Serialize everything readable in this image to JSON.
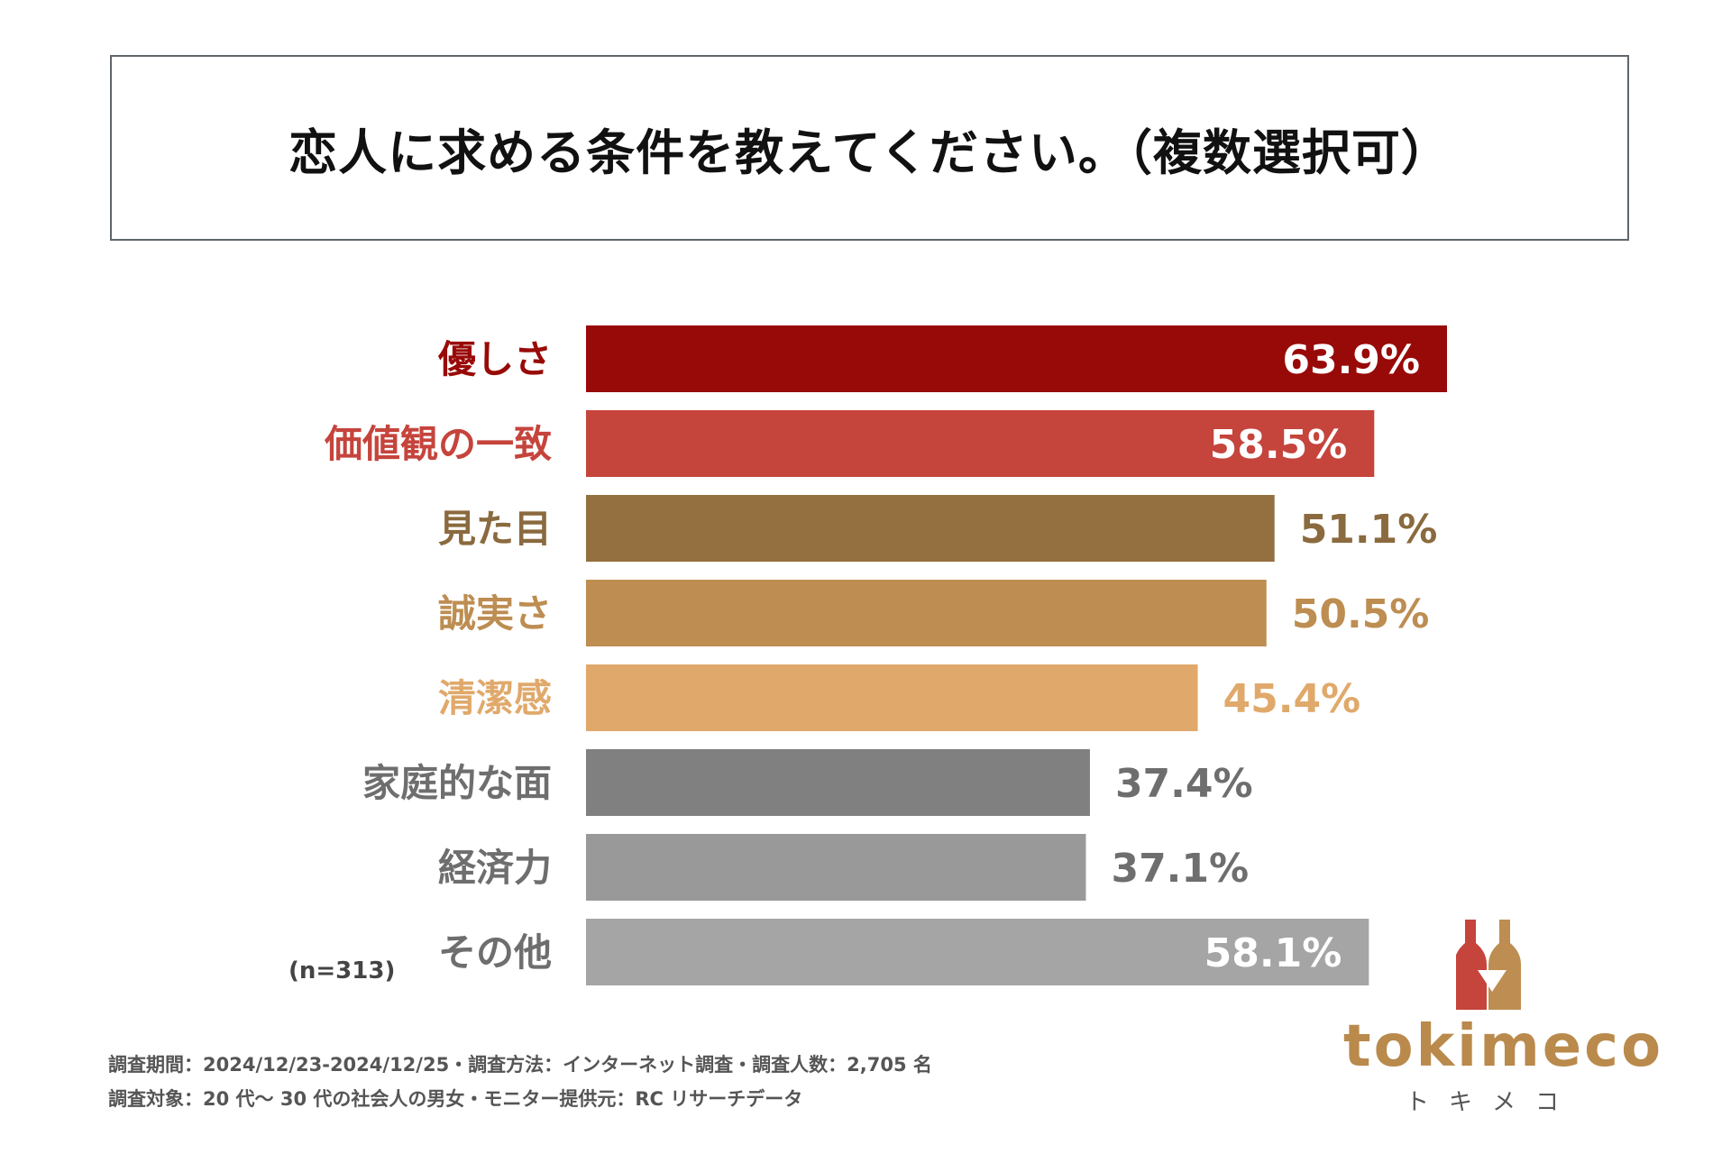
{
  "title": "恋人に求める条件を教えてください。（複数選択可）",
  "chart_data": {
    "type": "bar",
    "orientation": "horizontal",
    "title": "恋人に求める条件を教えてください。（複数選択可）",
    "categories": [
      "優しさ",
      "価値観の一致",
      "見た目",
      "誠実さ",
      "清潔感",
      "家庭的な面",
      "経済力",
      "その他"
    ],
    "values": [
      63.9,
      58.5,
      51.1,
      50.5,
      45.4,
      37.4,
      37.1,
      58.1
    ],
    "value_labels": [
      "63.9%",
      "58.5%",
      "51.1%",
      "50.5%",
      "45.4%",
      "37.4%",
      "37.1%",
      "58.1%"
    ],
    "bar_colors": [
      "#980a08",
      "#c5443c",
      "#946f3f",
      "#bd8d51",
      "#e0a96b",
      "#808080",
      "#999999",
      "#a5a5a5"
    ],
    "label_colors": [
      "#980a08",
      "#c5443c",
      "#8a6a3e",
      "#bd8d51",
      "#e0a96b",
      "#6e6e6e",
      "#6e6e6e",
      "#6e6e6e"
    ],
    "xlim": [
      0,
      63.9
    ],
    "xlabel": "",
    "ylabel": ""
  },
  "sample_size": "(n=313)",
  "footnotes": [
    "調査期間：2024/12/23-2024/12/25・調査方法：インターネット調査・調査人数：2,705 名",
    "調査対象：20 代～ 30 代の社会人の男女・モニター提供元：RC リサーチデータ"
  ],
  "logo": {
    "wordmark": "tokimeco",
    "kana": "トキメコ",
    "colors": {
      "red": "#c5443c",
      "gold": "#bd8d51"
    }
  }
}
